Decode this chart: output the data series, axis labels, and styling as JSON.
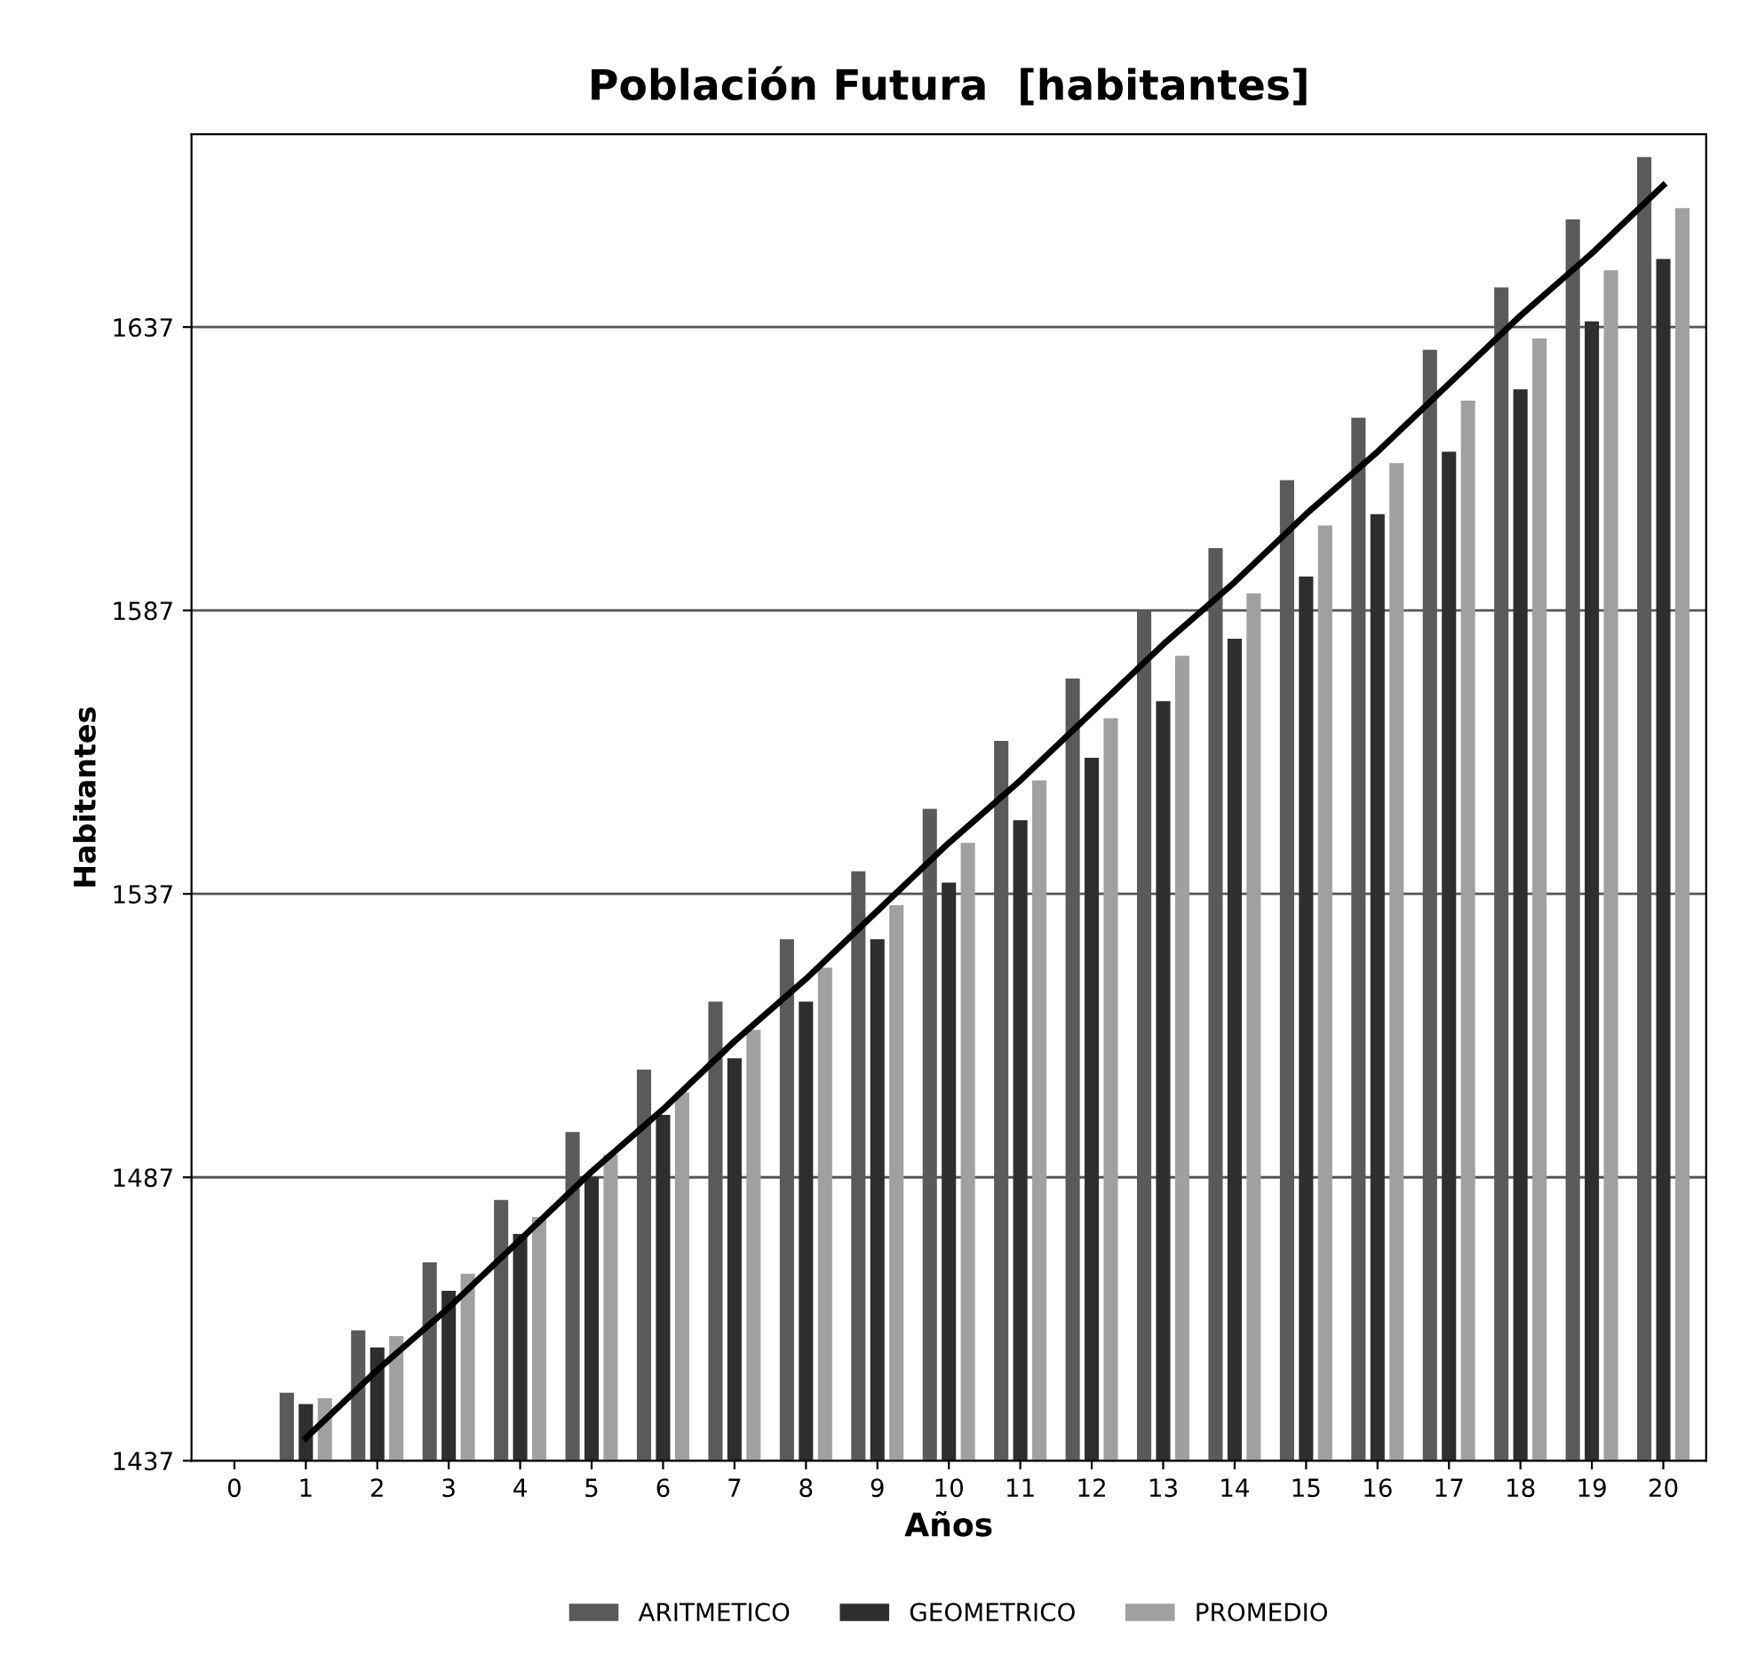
{
  "chart_data": {
    "type": "bar",
    "title": "Población Futura  [habitantes]",
    "xlabel": "Años",
    "ylabel": "Habitantes",
    "categories": [
      "0",
      "1",
      "2",
      "3",
      "4",
      "5",
      "6",
      "7",
      "8",
      "9",
      "10",
      "11",
      "12",
      "13",
      "14",
      "15",
      "16",
      "17",
      "18",
      "19",
      "20"
    ],
    "series": [
      {
        "name": "ARITMETICO",
        "color": "#5a5a5a",
        "values": [
          1437,
          1449,
          1460,
          1472,
          1483,
          1495,
          1506,
          1518,
          1529,
          1541,
          1552,
          1564,
          1575,
          1587,
          1598,
          1610,
          1621,
          1633,
          1644,
          1656,
          1667
        ]
      },
      {
        "name": "GEOMETRICO",
        "color": "#2e2e2e",
        "values": [
          1437,
          1447,
          1457,
          1467,
          1477,
          1487,
          1498,
          1508,
          1518,
          1529,
          1539,
          1550,
          1561,
          1571,
          1582,
          1593,
          1604,
          1615,
          1626,
          1638,
          1649
        ]
      },
      {
        "name": "PROMEDIO",
        "color": "#a0a0a0",
        "values": [
          1437,
          1448,
          1459,
          1470,
          1480,
          1491,
          1502,
          1513,
          1524,
          1535,
          1546,
          1557,
          1568,
          1579,
          1590,
          1602,
          1613,
          1624,
          1635,
          1647,
          1658
        ]
      },
      {
        "type": "line",
        "color": "#000000",
        "values": [
          null,
          1441,
          1453,
          1464,
          1476,
          1488,
          1499,
          1511,
          1522,
          1534,
          1546,
          1557,
          1569,
          1581,
          1592,
          1604,
          1615,
          1627,
          1639,
          1650,
          1662
        ]
      }
    ],
    "ylim": [
      1437,
      1671
    ],
    "yticks": [
      1437,
      1487,
      1537,
      1587,
      1637
    ],
    "grid": "y",
    "legend": "bottom"
  }
}
